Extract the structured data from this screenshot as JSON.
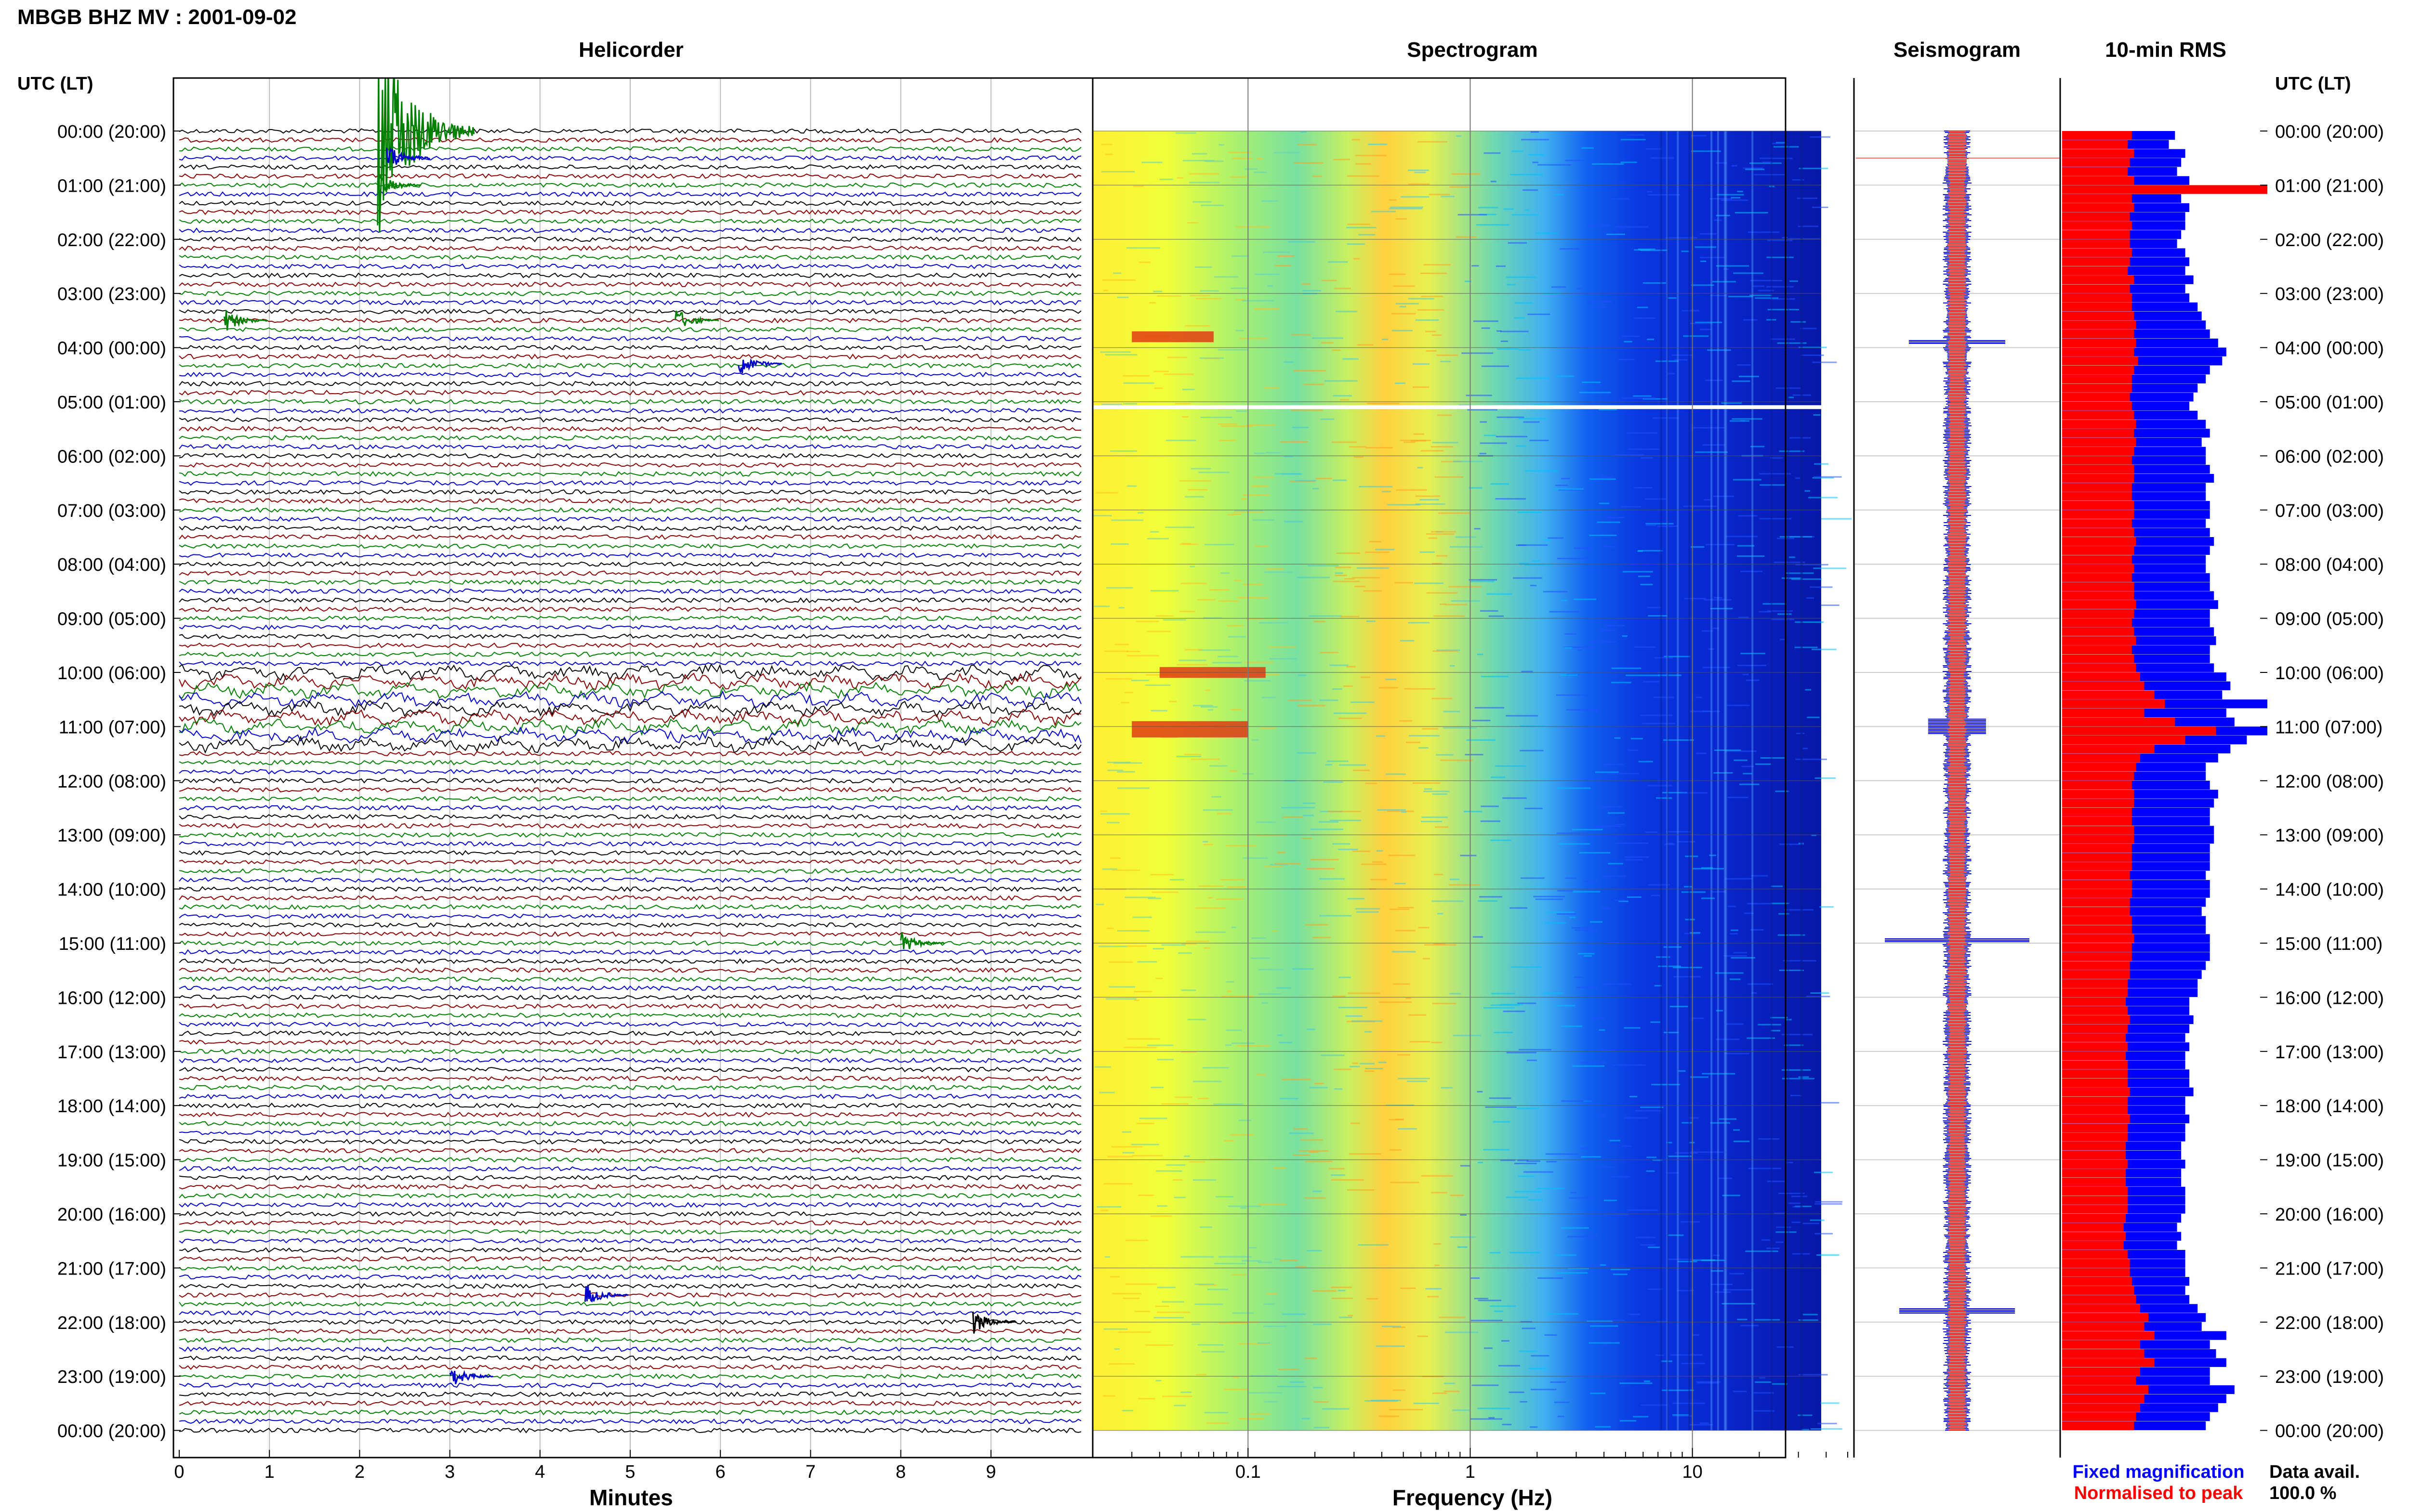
{
  "header": {
    "title": "MBGB BHZ MV : 2001-09-02"
  },
  "panels": {
    "helicorder": "Helicorder",
    "spectrogram": "Spectrogram",
    "seismogram": "Seismogram",
    "rms": "10-min RMS"
  },
  "axis_headers": {
    "left": "UTC (LT)",
    "right": "UTC (LT)"
  },
  "legend": {
    "fixed": "Fixed magnification",
    "normalised": "Normalised to peak",
    "fixed_color": "#0000ff",
    "normalised_color": "#ff0000"
  },
  "data_avail": {
    "label": "Data avail.",
    "value": "100.0 %"
  },
  "colors": {
    "trace_cycle": [
      "#000000",
      "#8b0000",
      "#008000",
      "#0000cd"
    ]
  },
  "chart_data": [
    {
      "type": "line",
      "title": "Helicorder",
      "xlabel": "Minutes",
      "xlim": [
        0,
        10
      ],
      "x_ticks": [
        "0",
        "1",
        "2",
        "3",
        "4",
        "5",
        "6",
        "7",
        "8",
        "9"
      ],
      "y_ticks": [
        "00:00 (20:00)",
        "01:00 (21:00)",
        "02:00 (22:00)",
        "03:00 (23:00)",
        "04:00 (00:00)",
        "05:00 (01:00)",
        "06:00 (02:00)",
        "07:00 (03:00)",
        "08:00 (04:00)",
        "09:00 (05:00)",
        "10:00 (06:00)",
        "11:00 (07:00)",
        "12:00 (08:00)",
        "13:00 (09:00)",
        "14:00 (10:00)",
        "15:00 (11:00)",
        "16:00 (12:00)",
        "17:00 (13:00)",
        "18:00 (14:00)",
        "19:00 (15:00)",
        "20:00 (16:00)",
        "21:00 (17:00)",
        "22:00 (18:00)",
        "23:00 (19:00)",
        "00:00 (20:00)"
      ],
      "lines_per_hour": 6,
      "events": [
        {
          "hour": 0.0,
          "minute": 2.2,
          "amplitude": 12,
          "color": "#008000"
        },
        {
          "hour": 0.5,
          "minute": 2.3,
          "amplitude": 2,
          "color": "#0000cd"
        },
        {
          "hour": 1.0,
          "minute": 2.2,
          "amplitude": 1.5,
          "color": "#008000"
        },
        {
          "hour": 3.5,
          "minute": 0.5,
          "amplitude": 1.5,
          "color": "#008000"
        },
        {
          "hour": 3.5,
          "minute": 5.5,
          "amplitude": 1.5,
          "color": "#008000"
        },
        {
          "hour": 4.3,
          "minute": 6.2,
          "amplitude": 1.5,
          "color": "#0000cd"
        },
        {
          "hour": 15.0,
          "minute": 8.0,
          "amplitude": 1.3,
          "color": "#008000"
        },
        {
          "hour": 21.5,
          "minute": 4.5,
          "amplitude": 1.5,
          "color": "#0000cd"
        },
        {
          "hour": 22.0,
          "minute": 8.8,
          "amplitude": 1.5,
          "color": "#000000"
        },
        {
          "hour": 23.0,
          "minute": 3.0,
          "amplitude": 1.5,
          "color": "#0000cd"
        }
      ],
      "tremor_hours": [
        10.0,
        10.2,
        10.5,
        10.8,
        11.0,
        11.2
      ]
    },
    {
      "type": "heatmap",
      "title": "Spectrogram",
      "xlabel": "Frequency (Hz)",
      "x_scale": "log",
      "xlim": [
        0.02,
        50
      ],
      "x_ticks": [
        0.1,
        1,
        10
      ],
      "x_tick_labels": [
        "0.1",
        "1",
        "10"
      ],
      "ylim_hours": [
        0,
        24
      ],
      "peak_frequency_hz": 0.4,
      "colormap": "jet",
      "hot_bands": [
        {
          "hour_start": 10.9,
          "hour_end": 11.2,
          "f_low": 0.03,
          "f_high": 0.1
        },
        {
          "hour_start": 9.9,
          "hour_end": 10.1,
          "f_low": 0.04,
          "f_high": 0.12
        },
        {
          "hour_start": 3.7,
          "hour_end": 3.9,
          "f_low": 0.03,
          "f_high": 0.07
        }
      ],
      "gap_hour": 5.1
    },
    {
      "type": "bar",
      "title": "10-min RMS",
      "orientation": "horizontal",
      "series": [
        {
          "name": "Fixed magnification",
          "color": "#0000ff",
          "values": [
            0.55,
            0.52,
            0.6,
            0.58,
            0.56,
            0.62,
            0.6,
            0.58,
            0.62,
            0.6,
            0.6,
            0.58,
            0.56,
            0.6,
            0.62,
            0.6,
            0.64,
            0.6,
            0.62,
            0.66,
            0.68,
            0.7,
            0.72,
            0.76,
            0.8,
            0.78,
            0.72,
            0.7,
            0.66,
            0.64,
            0.62,
            0.66,
            0.7,
            0.72,
            0.68,
            0.7,
            0.7,
            0.72,
            0.74,
            0.7,
            0.7,
            0.72,
            0.72,
            0.7,
            0.72,
            0.74,
            0.72,
            0.7,
            0.7,
            0.72,
            0.72,
            0.74,
            0.76,
            0.72,
            0.72,
            0.74,
            0.75,
            0.72,
            0.72,
            0.74,
            0.8,
            0.82,
            0.78,
            1.0,
            0.8,
            0.84,
            1.0,
            0.9,
            0.82,
            0.76,
            0.7,
            0.7,
            0.72,
            0.76,
            0.74,
            0.72,
            0.72,
            0.74,
            0.74,
            0.72,
            0.72,
            0.72,
            0.7,
            0.72,
            0.72,
            0.7,
            0.68,
            0.7,
            0.7,
            0.72,
            0.72,
            0.72,
            0.7,
            0.68,
            0.66,
            0.66,
            0.62,
            0.62,
            0.64,
            0.62,
            0.6,
            0.62,
            0.6,
            0.6,
            0.62,
            0.62,
            0.64,
            0.6,
            0.6,
            0.62,
            0.6,
            0.6,
            0.58,
            0.58,
            0.6,
            0.58,
            0.58,
            0.6,
            0.6,
            0.6,
            0.58,
            0.56,
            0.58,
            0.56,
            0.6,
            0.6,
            0.6,
            0.62,
            0.6,
            0.62,
            0.66,
            0.7,
            0.68,
            0.8,
            0.72,
            0.75,
            0.8,
            0.72,
            0.72,
            0.84,
            0.8,
            0.76,
            0.72,
            0.7
          ]
        },
        {
          "name": "Normalised to peak",
          "color": "#ff0000",
          "values": [
            0.34,
            0.32,
            0.35,
            0.33,
            0.32,
            0.35,
            1.0,
            0.34,
            0.35,
            0.33,
            0.34,
            0.33,
            0.33,
            0.34,
            0.33,
            0.32,
            0.35,
            0.33,
            0.34,
            0.34,
            0.35,
            0.36,
            0.35,
            0.36,
            0.35,
            0.37,
            0.35,
            0.34,
            0.34,
            0.33,
            0.34,
            0.35,
            0.36,
            0.35,
            0.36,
            0.35,
            0.34,
            0.35,
            0.35,
            0.34,
            0.34,
            0.35,
            0.35,
            0.34,
            0.35,
            0.36,
            0.35,
            0.34,
            0.35,
            0.34,
            0.35,
            0.35,
            0.36,
            0.35,
            0.34,
            0.35,
            0.36,
            0.34,
            0.35,
            0.36,
            0.38,
            0.4,
            0.45,
            0.5,
            0.4,
            0.55,
            0.75,
            0.6,
            0.45,
            0.38,
            0.36,
            0.35,
            0.34,
            0.35,
            0.35,
            0.34,
            0.34,
            0.35,
            0.35,
            0.34,
            0.34,
            0.34,
            0.33,
            0.34,
            0.34,
            0.33,
            0.33,
            0.34,
            0.34,
            0.35,
            0.34,
            0.34,
            0.33,
            0.33,
            0.32,
            0.32,
            0.31,
            0.32,
            0.33,
            0.32,
            0.31,
            0.32,
            0.31,
            0.32,
            0.32,
            0.32,
            0.33,
            0.32,
            0.32,
            0.33,
            0.32,
            0.32,
            0.31,
            0.31,
            0.32,
            0.31,
            0.31,
            0.32,
            0.32,
            0.32,
            0.31,
            0.3,
            0.31,
            0.3,
            0.32,
            0.33,
            0.33,
            0.34,
            0.35,
            0.36,
            0.38,
            0.42,
            0.4,
            0.45,
            0.38,
            0.4,
            0.45,
            0.38,
            0.36,
            0.42,
            0.4,
            0.38,
            0.36,
            0.35
          ]
        }
      ]
    }
  ]
}
